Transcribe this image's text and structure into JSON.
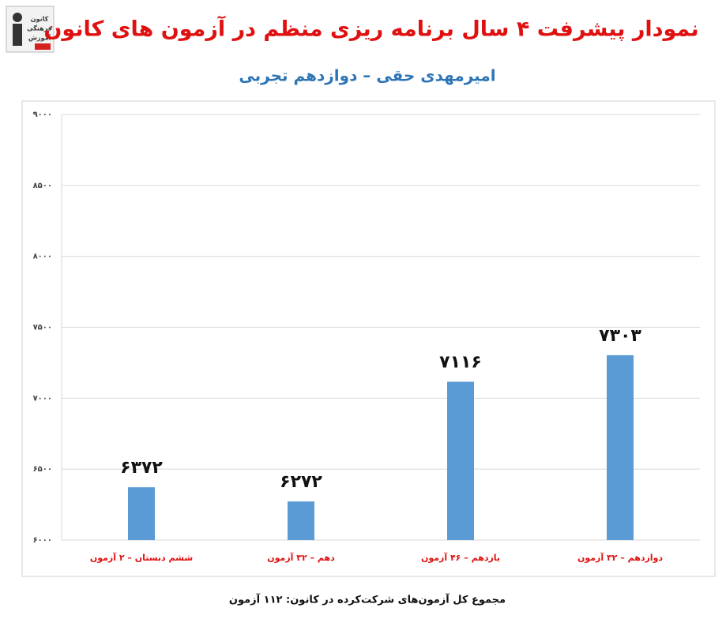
{
  "chart_data": {
    "type": "bar",
    "title": "نمودار پیشرفت ۴ سال برنامه ریزی منظم در آزمون های کانون",
    "subtitle": "امیرمهدی حقی – دوازدهم تجربی",
    "logo": [
      "کانون",
      "فرهنگی",
      "آموزش"
    ],
    "categories": [
      "ششم دبستان – ۲ آزمون",
      "دهم – ۳۲ آزمون",
      "یازدهم – ۴۶ آزمون",
      "دوازدهم – ۳۲ آزمون"
    ],
    "values": [
      6372,
      6272,
      7116,
      7303
    ],
    "value_labels": [
      "۶۳۷۲",
      "۶۲۷۲",
      "۷۱۱۶",
      "۷۳۰۳"
    ],
    "color": "#5b9bd5",
    "ylim": [
      6000,
      9000
    ],
    "yticks": [
      {
        "value": 6000,
        "label": "۶۰۰۰"
      },
      {
        "value": 6500,
        "label": "۶۵۰۰"
      },
      {
        "value": 7000,
        "label": "۷۰۰۰"
      },
      {
        "value": 7500,
        "label": "۷۵۰۰"
      },
      {
        "value": 8000,
        "label": "۸۰۰۰"
      },
      {
        "value": 8500,
        "label": "۸۵۰۰"
      },
      {
        "value": 9000,
        "label": "۹۰۰۰"
      }
    ],
    "grid": true,
    "footnote": "مجموع کل آزمون‌های شرکت‌کرده در کانون: ۱۱۲ آزمون"
  }
}
